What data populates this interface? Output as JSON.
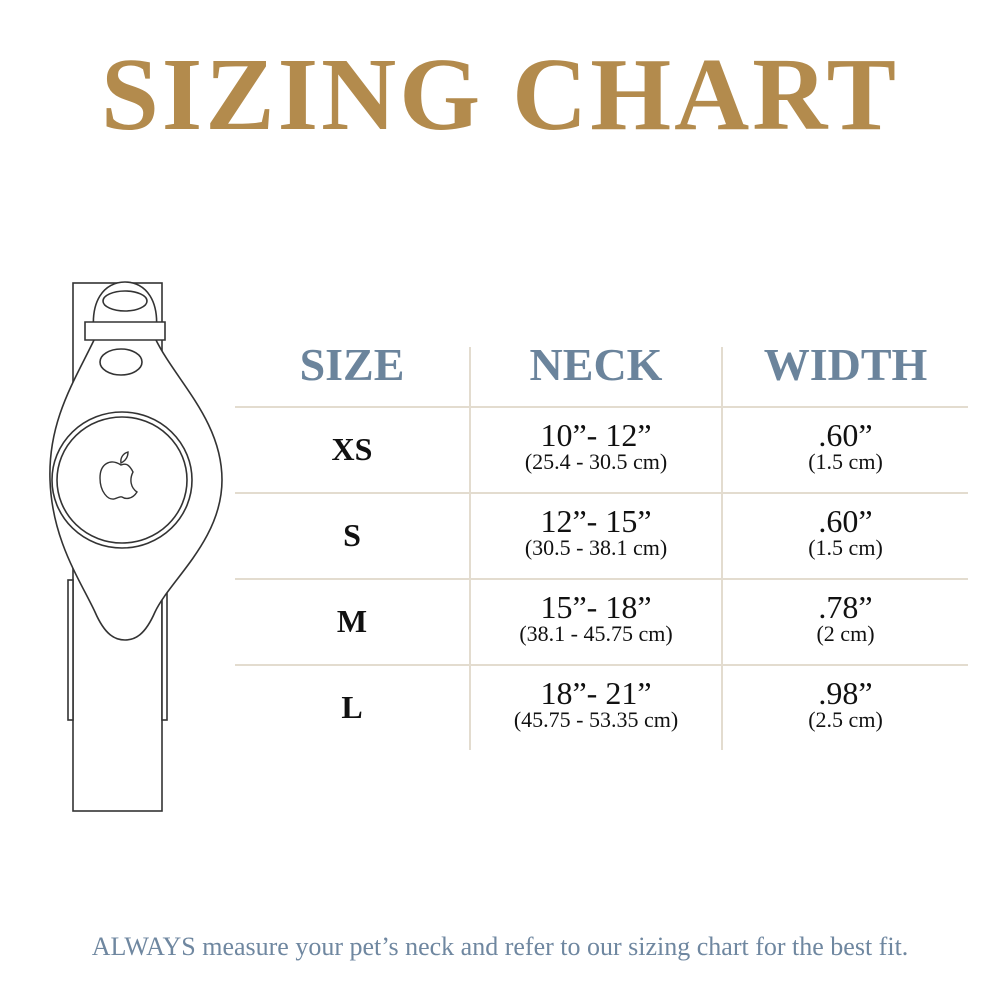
{
  "title": "SIZING CHART",
  "colors": {
    "title": "#b38b4d",
    "header": "#6b849c",
    "divider": "#e3dccf",
    "footer": "#6f87a0"
  },
  "illustration": {
    "icon": "collar-with-apple-airtag-holder-icon"
  },
  "table": {
    "headers": [
      "SIZE",
      "NECK",
      "WIDTH"
    ],
    "rows": [
      {
        "size": "XS",
        "neck": "10”- 12”",
        "neck_cm": "(25.4 - 30.5 cm)",
        "width": ".60”",
        "width_cm": "(1.5 cm)"
      },
      {
        "size": "S",
        "neck": "12”- 15”",
        "neck_cm": "(30.5 - 38.1 cm)",
        "width": ".60”",
        "width_cm": "(1.5 cm)"
      },
      {
        "size": "M",
        "neck": "15”- 18”",
        "neck_cm": "(38.1 - 45.75 cm)",
        "width": ".78”",
        "width_cm": "(2 cm)"
      },
      {
        "size": "L",
        "neck": "18”- 21”",
        "neck_cm": "(45.75 - 53.35 cm)",
        "width": ".98”",
        "width_cm": "(2.5 cm)"
      }
    ]
  },
  "footer": "ALWAYS measure your pet’s neck and refer to our sizing chart for the best fit."
}
